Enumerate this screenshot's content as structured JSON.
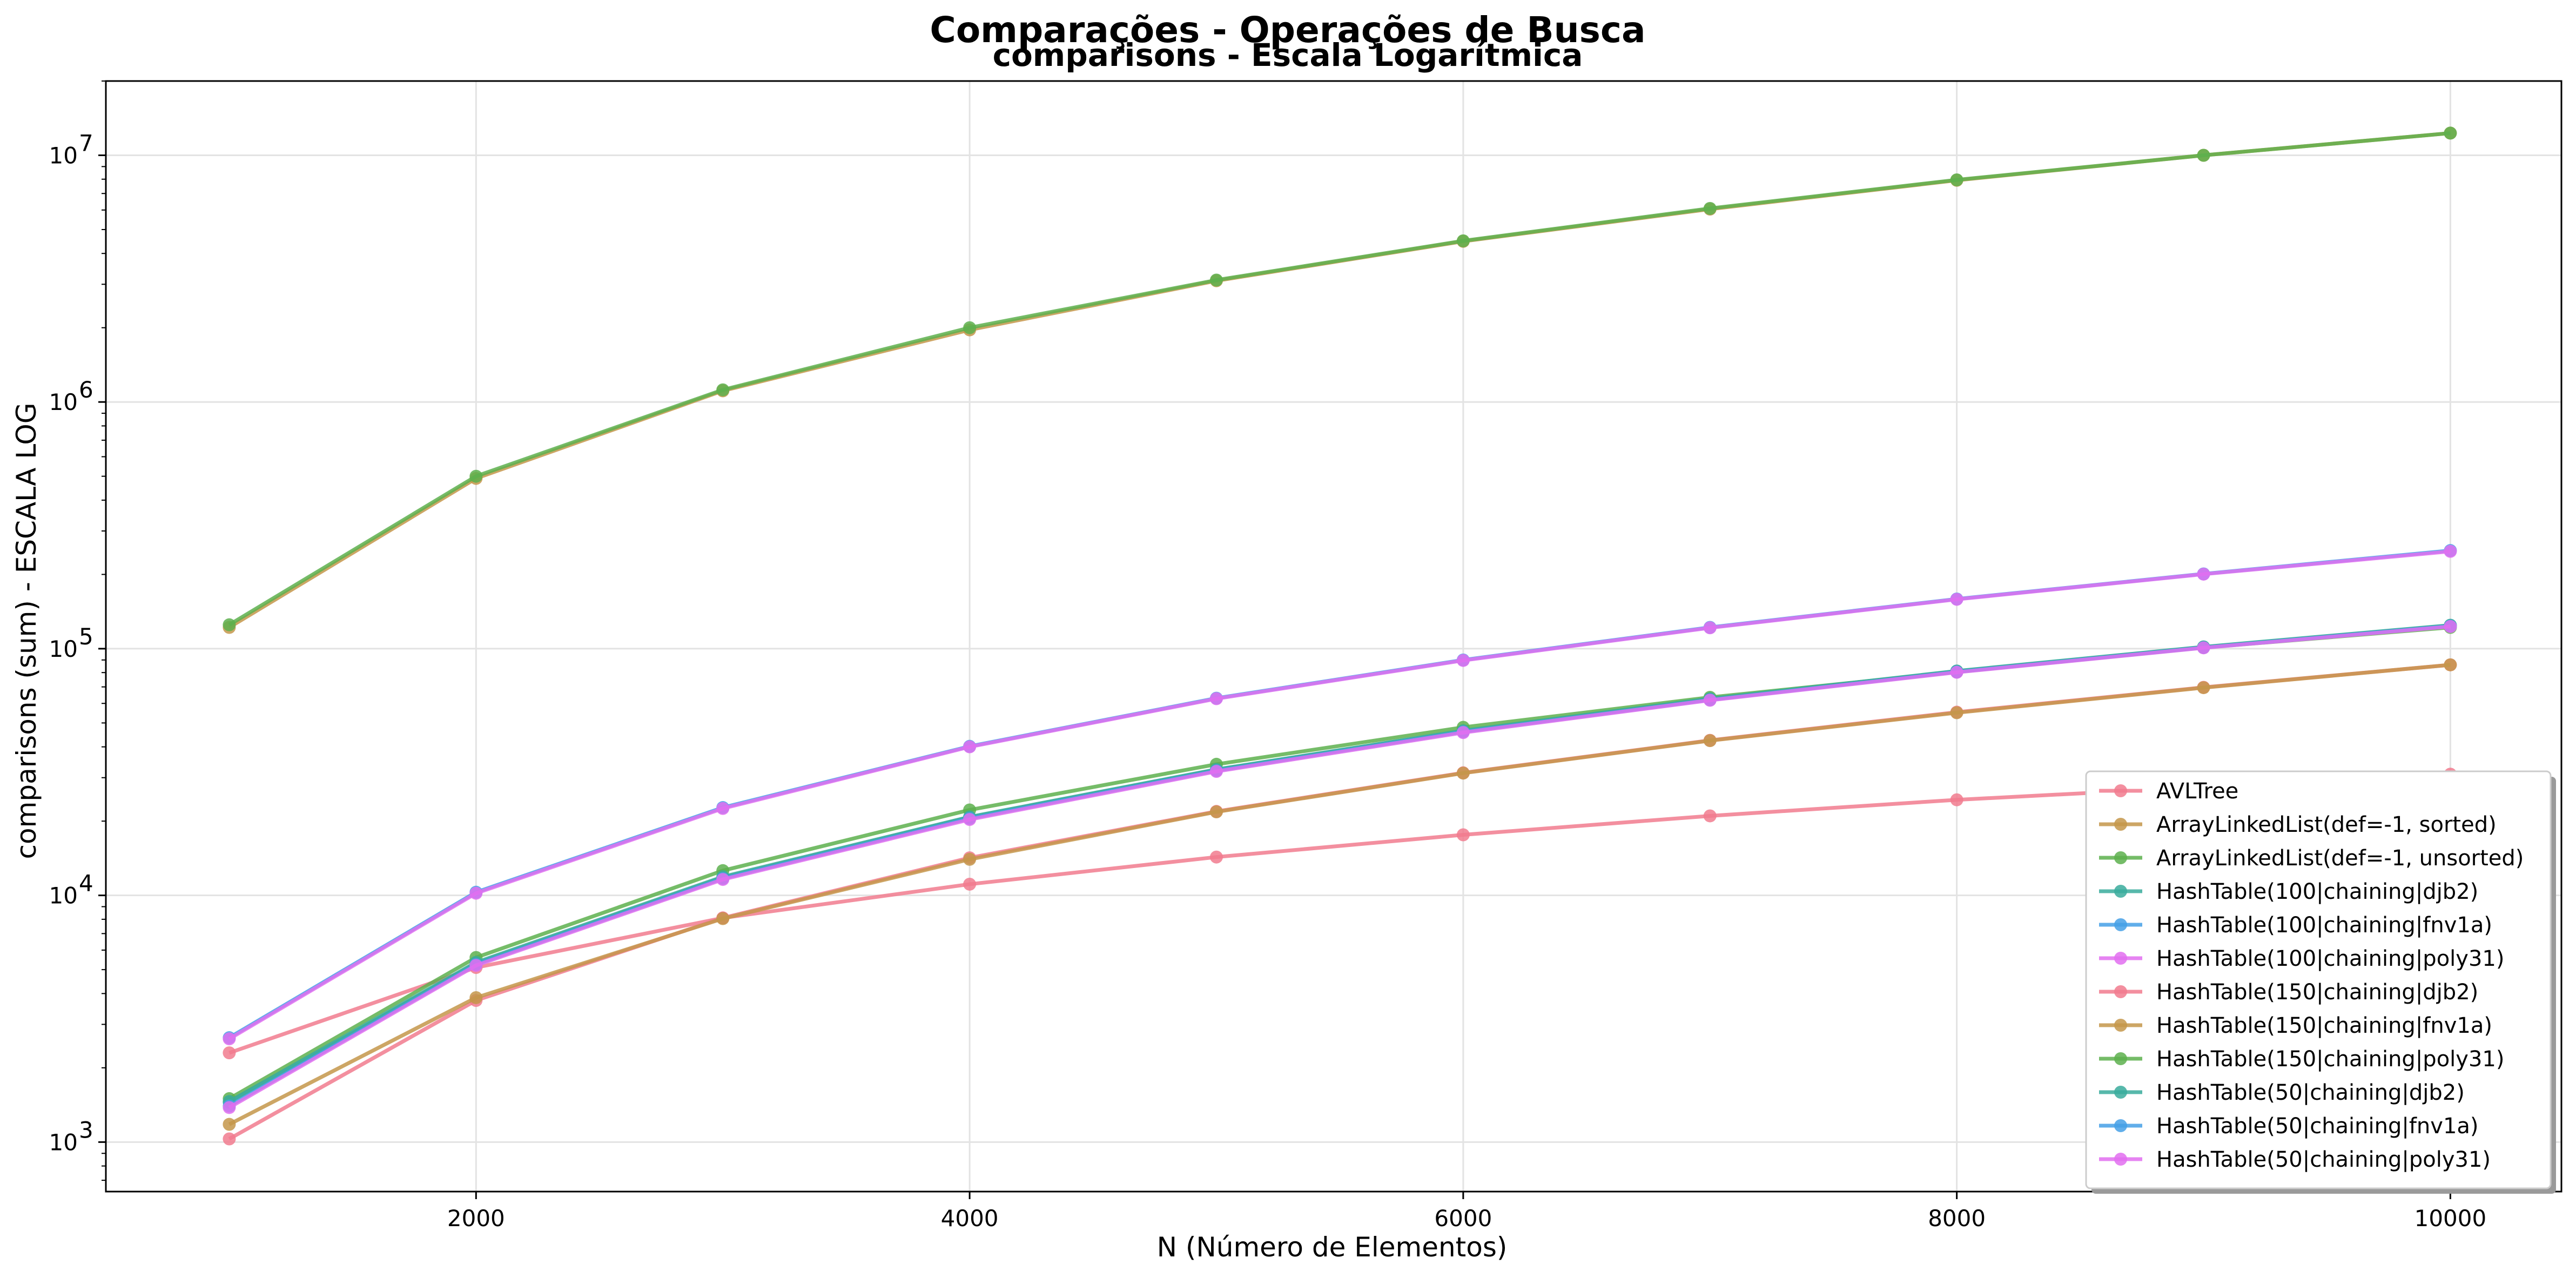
{
  "chart_data": {
    "type": "line",
    "suptitle": "Comparações - Operações de Busca",
    "title": "comparisons - Escala Logarítmica",
    "xlabel": "N (Número de Elementos)",
    "ylabel": "comparisons (sum) - ESCALA LOG",
    "yscale": "log",
    "xlim": [
      500,
      10450
    ],
    "ylim": [
      630,
      20000000
    ],
    "xticks": [
      2000,
      4000,
      6000,
      8000,
      10000
    ],
    "yticks": [
      {
        "value": 1000,
        "base": "10",
        "exp": "3"
      },
      {
        "value": 10000,
        "base": "10",
        "exp": "4"
      },
      {
        "value": 100000,
        "base": "10",
        "exp": "5"
      },
      {
        "value": 1000000,
        "base": "10",
        "exp": "6"
      },
      {
        "value": 10000000,
        "base": "10",
        "exp": "7"
      }
    ],
    "grid": true,
    "legend_position": "lower right",
    "x": [
      1000,
      2000,
      3000,
      4000,
      5000,
      6000,
      7000,
      8000,
      9000,
      10000
    ],
    "series": [
      {
        "name": "AVLTree",
        "color": "#f17b8e",
        "values": [
          2300,
          5100,
          8100,
          11100,
          14300,
          17600,
          21000,
          24400,
          27500,
          31000
        ]
      },
      {
        "name": "ArrayLinkedList(def=-1, sorted)",
        "color": "#c4964a",
        "values": [
          122000,
          490000,
          1110000,
          1960000,
          3100000,
          4480000,
          6050000,
          7920000,
          10000000,
          12300000
        ]
      },
      {
        "name": "ArrayLinkedList(def=-1, unsorted)",
        "color": "#5db04e",
        "values": [
          125000,
          500000,
          1120000,
          2000000,
          3120000,
          4500000,
          6090000,
          7950000,
          10000000,
          12300000
        ]
      },
      {
        "name": "HashTable(100|chaining|djb2)",
        "color": "#3aab9c",
        "values": [
          1450,
          5300,
          11800,
          20700,
          32300,
          46400,
          62600,
          81000,
          101500,
          124000
        ]
      },
      {
        "name": "HashTable(100|chaining|fnv1a)",
        "color": "#45a0e6",
        "values": [
          2650,
          10300,
          22700,
          40200,
          63000,
          90000,
          122000,
          159000,
          201000,
          250000
        ]
      },
      {
        "name": "HashTable(100|chaining|poly31)",
        "color": "#e26ef0",
        "values": [
          2620,
          10200,
          22500,
          40000,
          62700,
          89600,
          121500,
          158500,
          200500,
          248000
        ]
      },
      {
        "name": "HashTable(150|chaining|djb2)",
        "color": "#f17b8e",
        "values": [
          1030,
          3750,
          8100,
          14200,
          21900,
          31400,
          42500,
          55300,
          69700,
          86000
        ]
      },
      {
        "name": "HashTable(150|chaining|fnv1a)",
        "color": "#c4964a",
        "values": [
          1180,
          3850,
          8050,
          14000,
          21800,
          31300,
          42400,
          55000,
          69500,
          86000
        ]
      },
      {
        "name": "HashTable(150|chaining|poly31)",
        "color": "#5db04e",
        "values": [
          1500,
          5600,
          12600,
          22200,
          34000,
          48000,
          63500,
          80500,
          101000,
          122000
        ]
      },
      {
        "name": "HashTable(50|chaining|djb2)",
        "color": "#3aab9c",
        "values": [
          1460,
          5350,
          11900,
          20800,
          32400,
          46500,
          62700,
          81200,
          101700,
          124500
        ]
      },
      {
        "name": "HashTable(50|chaining|fnv1a)",
        "color": "#45a0e6",
        "values": [
          1400,
          5250,
          11700,
          20500,
          32000,
          46000,
          62000,
          80500,
          101000,
          123500
        ]
      },
      {
        "name": "HashTable(50|chaining|poly31)",
        "color": "#e26ef0",
        "values": [
          1380,
          5200,
          11600,
          20300,
          31800,
          45700,
          61800,
          80200,
          100800,
          123000
        ]
      }
    ]
  }
}
